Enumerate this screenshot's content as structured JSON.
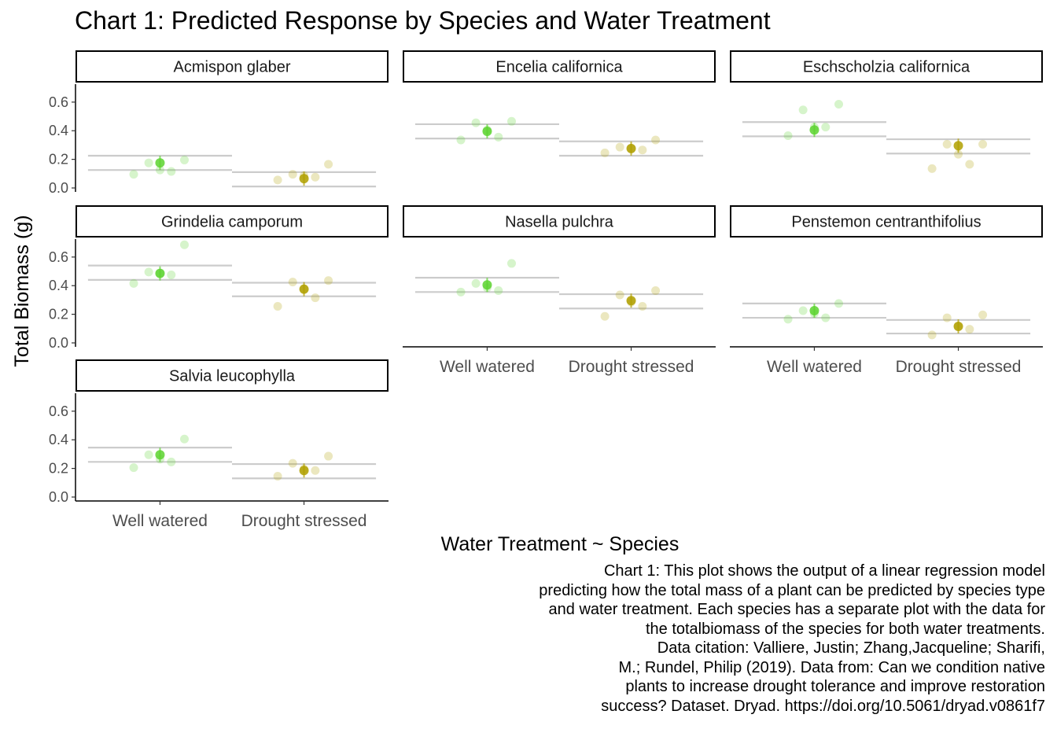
{
  "title": "Chart 1: Predicted Response by Species and Water Treatment",
  "caption": "Chart 1: This plot shows the output of a linear regression model \npredicting how the total mass of a plant can be predicted by species type\nand water treatment. Each species has a separate plot with the data for\nthe totalbiomass of the species for both water treatments.\nData citation: Valliere, Justin; Zhang,Jacqueline; Sharifi,\nM.; Rundel, Philip (2019). Data from: Can we condition native\nplants to increase drought tolerance and improve restoration\nsuccess? Dataset. Dryad. https://doi.org/10.5061/dryad.v0861f7",
  "colors": {
    "well_watered": "#5cd42f",
    "drought_stressed": "#b0a000",
    "ci_line": "#cccccc",
    "strip_border": "#000000"
  },
  "chart_data": {
    "type": "scatter",
    "title": "Chart 1: Predicted Response by Species and Water Treatment",
    "xlabel": "Water Treatment ~ Species",
    "ylabel": "Total Biomass (g)",
    "categories": [
      "Well watered",
      "Drought stressed"
    ],
    "ylim": [
      0,
      0.72
    ],
    "yticks": [
      "0.0",
      "0.2",
      "0.4",
      "0.6"
    ],
    "grid": false,
    "facets": [
      {
        "name": "Acmispon glaber",
        "well_watered": {
          "fit": 0.17,
          "ci": [
            0.12,
            0.22
          ],
          "points": [
            0.09,
            0.11,
            0.12,
            0.17,
            0.19
          ]
        },
        "drought_stressed": {
          "fit": 0.06,
          "ci": [
            0.005,
            0.105
          ],
          "points": [
            0.05,
            0.07,
            0.08,
            0.09,
            0.16
          ]
        }
      },
      {
        "name": "Encelia californica",
        "well_watered": {
          "fit": 0.39,
          "ci": [
            0.34,
            0.44
          ],
          "points": [
            0.33,
            0.35,
            0.4,
            0.45,
            0.46
          ]
        },
        "drought_stressed": {
          "fit": 0.27,
          "ci": [
            0.22,
            0.32
          ],
          "points": [
            0.24,
            0.26,
            0.27,
            0.28,
            0.33
          ]
        }
      },
      {
        "name": "Eschscholzia californica",
        "well_watered": {
          "fit": 0.4,
          "ci": [
            0.355,
            0.455
          ],
          "points": [
            0.36,
            0.42,
            0.42,
            0.54,
            0.58
          ]
        },
        "drought_stressed": {
          "fit": 0.29,
          "ci": [
            0.235,
            0.335
          ],
          "points": [
            0.13,
            0.16,
            0.23,
            0.3,
            0.3
          ]
        }
      },
      {
        "name": "Grindelia camporum",
        "well_watered": {
          "fit": 0.48,
          "ci": [
            0.435,
            0.535
          ],
          "points": [
            0.41,
            0.47,
            0.48,
            0.49,
            0.68
          ]
        },
        "drought_stressed": {
          "fit": 0.37,
          "ci": [
            0.32,
            0.415
          ],
          "points": [
            0.25,
            0.31,
            0.37,
            0.42,
            0.43
          ]
        }
      },
      {
        "name": "Nasella pulchra",
        "well_watered": {
          "fit": 0.4,
          "ci": [
            0.35,
            0.45
          ],
          "points": [
            0.35,
            0.36,
            0.38,
            0.41,
            0.55
          ]
        },
        "drought_stressed": {
          "fit": 0.29,
          "ci": [
            0.235,
            0.335
          ],
          "points": [
            0.18,
            0.25,
            0.28,
            0.33,
            0.36
          ]
        }
      },
      {
        "name": "Penstemon centranthifolius",
        "well_watered": {
          "fit": 0.22,
          "ci": [
            0.17,
            0.27
          ],
          "points": [
            0.16,
            0.17,
            0.2,
            0.22,
            0.27
          ]
        },
        "drought_stressed": {
          "fit": 0.11,
          "ci": [
            0.06,
            0.155
          ],
          "points": [
            0.05,
            0.09,
            0.11,
            0.17,
            0.19
          ]
        }
      },
      {
        "name": "Salvia leucophylla",
        "well_watered": {
          "fit": 0.29,
          "ci": [
            0.24,
            0.34
          ],
          "points": [
            0.2,
            0.24,
            0.26,
            0.29,
            0.4
          ]
        },
        "drought_stressed": {
          "fit": 0.18,
          "ci": [
            0.125,
            0.225
          ],
          "points": [
            0.14,
            0.18,
            0.19,
            0.23,
            0.28
          ]
        }
      }
    ]
  }
}
